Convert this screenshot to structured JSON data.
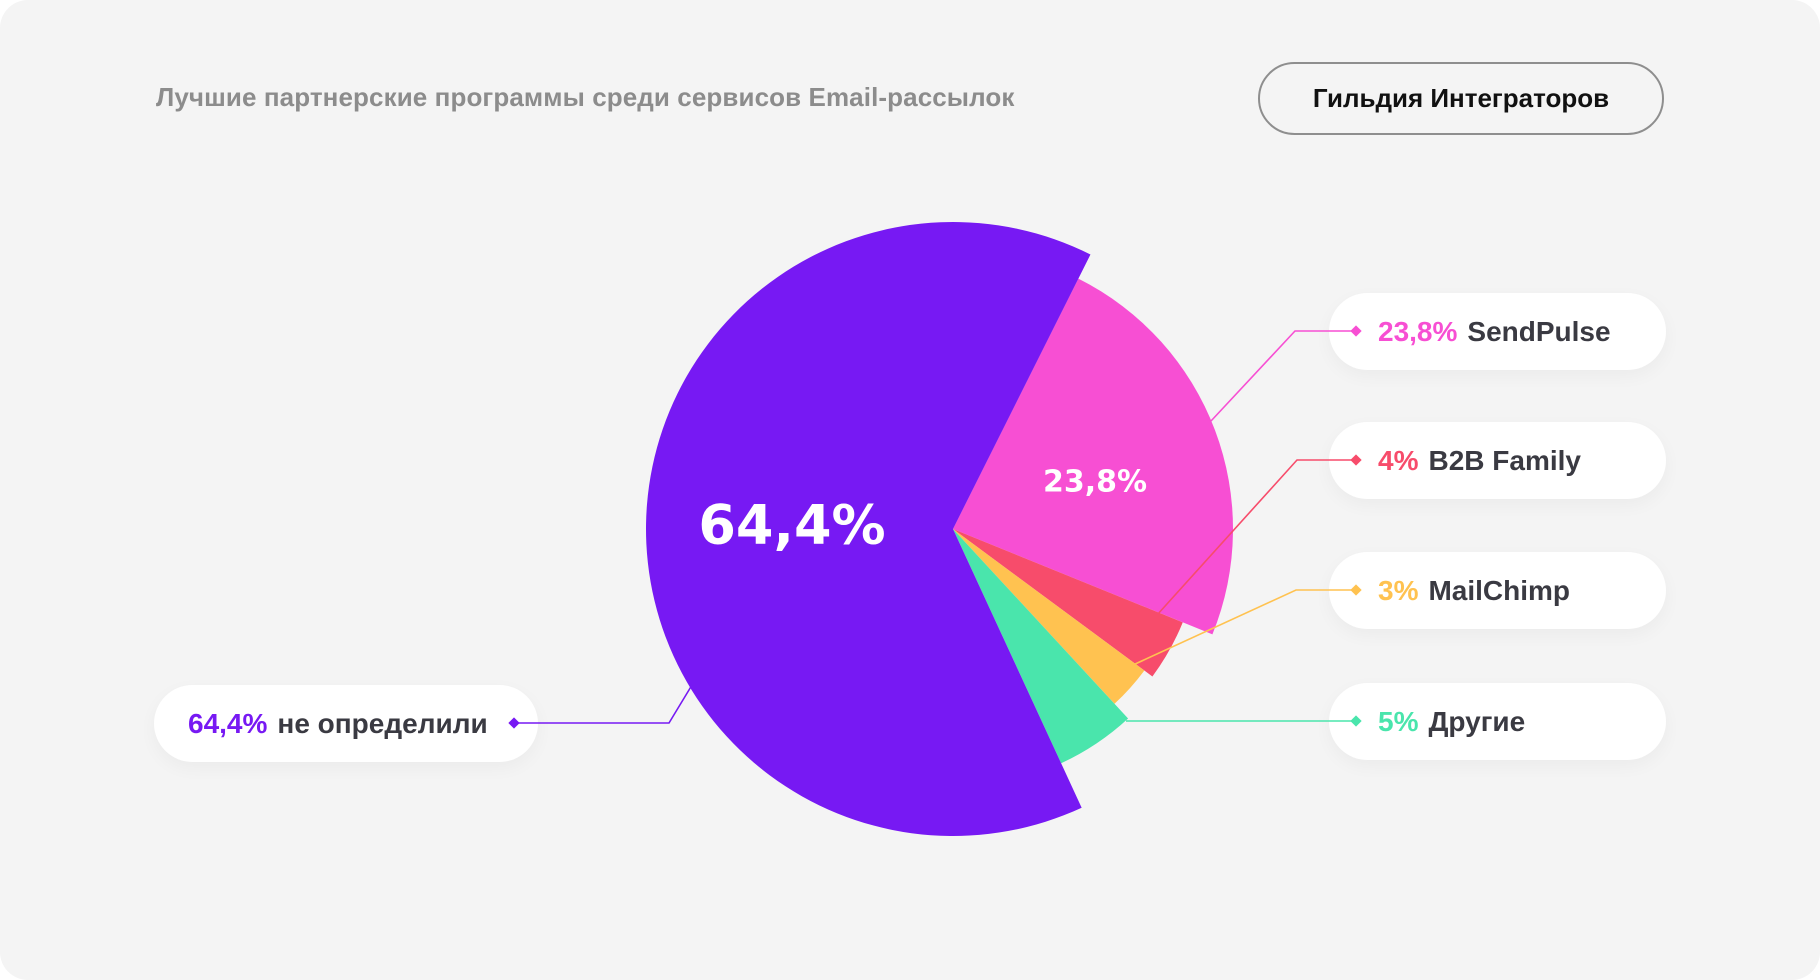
{
  "header": {
    "title": "Лучшие партнерские программы среди сервисов Email-рассылок",
    "brand_button": "Гильдия Интеграторов"
  },
  "chart_data": {
    "type": "pie",
    "title": "Лучшие партнерские программы среди сервисов Email-рассылок",
    "unit": "%",
    "slices": [
      {
        "name": "SendPulse",
        "value": 23.8,
        "label": "23,8%",
        "color": "#f74fd3",
        "inner_label": "23,8%"
      },
      {
        "name": "B2B Family",
        "value": 4,
        "label": "4%",
        "color": "#f74c6b"
      },
      {
        "name": "MailChimp",
        "value": 3,
        "label": "3%",
        "color": "#ffc250"
      },
      {
        "name": "Другие",
        "value": 5,
        "label": "5%",
        "color": "#4ae5ac"
      },
      {
        "name": "не определили",
        "value": 64.4,
        "label": "64,4%",
        "color": "#7719f3",
        "inner_label": "64,4%"
      }
    ],
    "legend_placement": "callouts"
  }
}
